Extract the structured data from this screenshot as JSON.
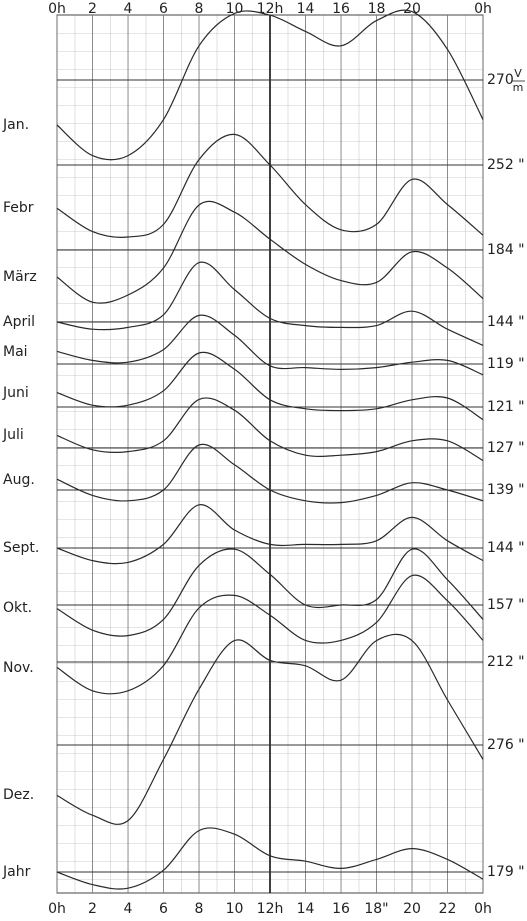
{
  "chart_data": {
    "type": "line",
    "color": "#2a2a2a",
    "x": [
      0,
      2,
      4,
      6,
      8,
      10,
      12,
      14,
      16,
      18,
      20,
      22,
      24
    ],
    "xlim": [
      0,
      24
    ],
    "xticks_top": [
      {
        "value": 0,
        "label": "0h"
      },
      2,
      4,
      6,
      8,
      10,
      {
        "value": 12,
        "label": "12h"
      },
      14,
      16,
      18,
      20,
      {
        "value": 24,
        "label": "0h"
      }
    ],
    "xticks": [
      {
        "value": 0,
        "label": "0h"
      },
      2,
      4,
      6,
      8,
      10,
      {
        "value": 12,
        "label": "12h"
      },
      14,
      16,
      {
        "value": 18,
        "label": "18\""
      },
      20,
      22,
      {
        "value": 24,
        "label": "0h"
      }
    ],
    "unit_numerator": "V",
    "unit_denominator": "m",
    "series": [
      {
        "name": "Jan.",
        "mean_label": "270",
        "values": [
          -2.5,
          -4.2,
          -4.2,
          -2.2,
          1.9,
          3.7,
          3.6,
          2.7,
          1.9,
          3.3,
          3.8,
          1.7,
          -2.2
        ]
      },
      {
        "name": "Febr",
        "mean_label": "252 \"",
        "values": [
          -2.4,
          -3.7,
          -4.0,
          -3.3,
          0.3,
          1.7,
          0,
          -2.2,
          -3.6,
          -3.3,
          -0.8,
          -2.2,
          -3.9
        ]
      },
      {
        "name": "März",
        "mean_label": "184 \"",
        "values": [
          -1.5,
          -2.9,
          -2.5,
          -1.0,
          2.5,
          2.1,
          0.6,
          -0.8,
          -1.7,
          -1.8,
          -0.1,
          -1.0,
          -2.7
        ]
      },
      {
        "name": "April",
        "mean_label": "144 \"",
        "values": [
          0,
          -0.4,
          -0.3,
          0.4,
          3.3,
          1.8,
          0.2,
          -0.2,
          -0.3,
          -0.2,
          0.6,
          -0.4,
          -1.3
        ]
      },
      {
        "name": "Mai",
        "mean_label": "119 \"",
        "values": [
          0.7,
          0.2,
          0.1,
          0.8,
          2.7,
          1.6,
          -0.1,
          -0.2,
          -0.3,
          -0.2,
          0.1,
          0.2,
          -0.6
        ]
      },
      {
        "name": "Juni",
        "mean_label": "121 \"",
        "values": [
          0.8,
          0.1,
          0.1,
          0.9,
          3.0,
          2.1,
          0.4,
          -0.1,
          -0.2,
          -0.1,
          0.4,
          0.5,
          -0.7
        ]
      },
      {
        "name": "Juli",
        "mean_label": "127 \"",
        "values": [
          0.7,
          -0.1,
          -0.2,
          0.4,
          2.7,
          2.1,
          0.4,
          -0.4,
          -0.4,
          -0.2,
          0.4,
          0.4,
          -0.7
        ]
      },
      {
        "name": "Aug.",
        "mean_label": "139 \"",
        "values": [
          0.6,
          -0.3,
          -0.6,
          0,
          2.5,
          1.4,
          0,
          -0.6,
          -0.7,
          -0.3,
          0.4,
          0,
          -0.6
        ]
      },
      {
        "name": "Sept.",
        "mean_label": "144 \"",
        "values": [
          0,
          -0.7,
          -0.8,
          0.2,
          2.4,
          1.0,
          0.2,
          0.2,
          0.2,
          0.4,
          1.7,
          0.4,
          -0.7
        ]
      },
      {
        "name": "Okt.",
        "mean_label": "157 \"",
        "values": [
          -0.2,
          -1.4,
          -1.7,
          -0.8,
          2.2,
          3.1,
          1.7,
          0,
          0,
          0.3,
          3.1,
          1.4,
          -0.8
        ]
      },
      {
        "name": "Nov.",
        "mean_label": "212 \"",
        "values": [
          -0.3,
          -1.6,
          -1.6,
          -0.2,
          3.0,
          3.7,
          2.6,
          1.2,
          1.2,
          2.2,
          4.8,
          3.4,
          1.2
        ]
      },
      {
        "name": "Dez.",
        "mean_label": "276 \"",
        "values": [
          -2.8,
          -3.9,
          -4.2,
          -0.8,
          3.1,
          5.8,
          4.7,
          4.4,
          3.6,
          5.8,
          5.8,
          2.5,
          -0.8
        ]
      },
      {
        "name": "Jahr",
        "mean_label": "179 \"",
        "values": [
          0,
          -0.7,
          -0.9,
          0.1,
          2.3,
          2.1,
          0.9,
          0.6,
          0.2,
          0.7,
          1.3,
          0.7,
          -0.4
        ]
      }
    ]
  }
}
